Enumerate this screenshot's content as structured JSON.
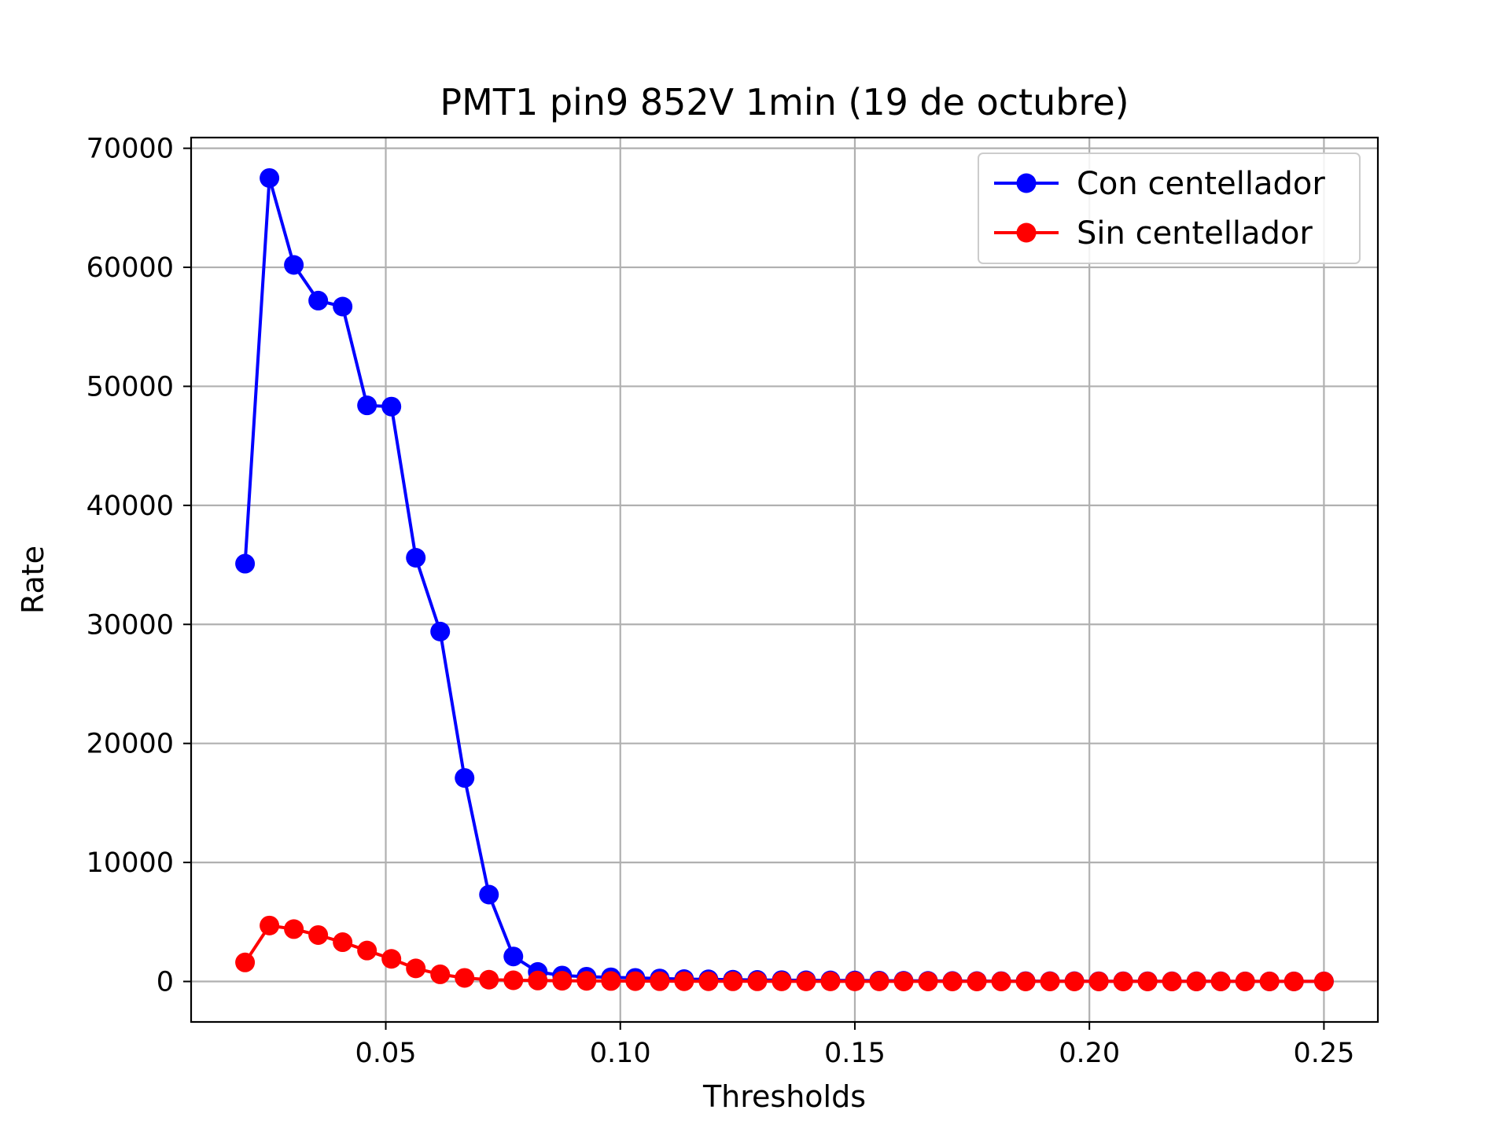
{
  "chart_data": {
    "type": "line",
    "title": "PMT1 pin9 852V 1min (19 de octubre)",
    "xlabel": "Thresholds",
    "ylabel": "Rate",
    "xlim": [
      0.0085,
      0.2615
    ],
    "ylim": [
      -3400,
      70900
    ],
    "xticks": [
      0.05,
      0.1,
      0.15,
      0.2,
      0.25
    ],
    "xtick_labels": [
      "0.05",
      "0.10",
      "0.15",
      "0.20",
      "0.25"
    ],
    "yticks": [
      0,
      10000,
      20000,
      30000,
      40000,
      50000,
      60000,
      70000
    ],
    "ytick_labels": [
      "0",
      "10000",
      "20000",
      "30000",
      "40000",
      "50000",
      "60000",
      "70000"
    ],
    "grid": true,
    "legend_position": "top-right",
    "x": [
      0.02,
      0.0252,
      0.0304,
      0.0356,
      0.0408,
      0.046,
      0.0512,
      0.0564,
      0.0616,
      0.0668,
      0.072,
      0.0772,
      0.0824,
      0.0876,
      0.0928,
      0.098,
      0.1032,
      0.1084,
      0.1136,
      0.1188,
      0.124,
      0.1292,
      0.1344,
      0.1396,
      0.1448,
      0.15,
      0.1552,
      0.1604,
      0.1656,
      0.1708,
      0.176,
      0.1812,
      0.1864,
      0.1916,
      0.1968,
      0.202,
      0.2072,
      0.2124,
      0.2176,
      0.2228,
      0.228,
      0.2332,
      0.2384,
      0.2436,
      0.25
    ],
    "series": [
      {
        "name": "Con centellador",
        "color": "#0000ff",
        "values": [
          35100,
          67500,
          60200,
          57200,
          56700,
          48400,
          48300,
          35600,
          29400,
          17100,
          7300,
          2100,
          800,
          500,
          400,
          350,
          300,
          250,
          200,
          180,
          150,
          130,
          110,
          100,
          90,
          80,
          70,
          60,
          50,
          40,
          35,
          30,
          30,
          25,
          25,
          20,
          20,
          20,
          15,
          15,
          15,
          10,
          10,
          10,
          10
        ]
      },
      {
        "name": "Sin centellador",
        "color": "#ff0000",
        "values": [
          1600,
          4700,
          4400,
          3900,
          3300,
          2600,
          1900,
          1100,
          600,
          300,
          150,
          100,
          80,
          60,
          50,
          40,
          30,
          25,
          20,
          20,
          15,
          15,
          10,
          10,
          10,
          10,
          10,
          5,
          5,
          5,
          5,
          5,
          5,
          5,
          5,
          5,
          5,
          5,
          5,
          5,
          5,
          5,
          5,
          5,
          5
        ]
      }
    ]
  }
}
